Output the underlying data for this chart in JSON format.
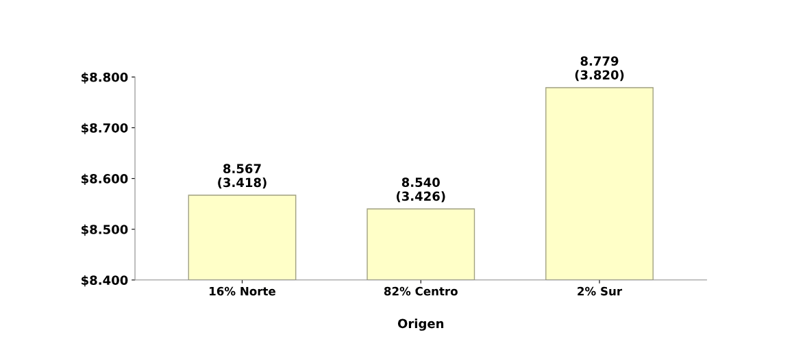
{
  "chart_data": {
    "type": "bar",
    "xlabel": "Origen",
    "categories": [
      "16% Norte",
      "82% Centro",
      "2% Sur"
    ],
    "values": [
      8567,
      8540,
      8779
    ],
    "value_labels": [
      "8.567\n(3.418)",
      "8.540\n(3.426)",
      "8.779\n(3.820)"
    ],
    "color": "#ffffc8",
    "ylim": [
      8400,
      8800
    ],
    "yticks": [
      {
        "value": 8400,
        "label": "$8.400"
      },
      {
        "value": 8500,
        "label": "$8.500"
      },
      {
        "value": 8600,
        "label": "$8.600"
      },
      {
        "value": 8700,
        "label": "$8.700"
      },
      {
        "value": 8800,
        "label": "$8.800"
      }
    ],
    "grid": false,
    "legend": false
  }
}
